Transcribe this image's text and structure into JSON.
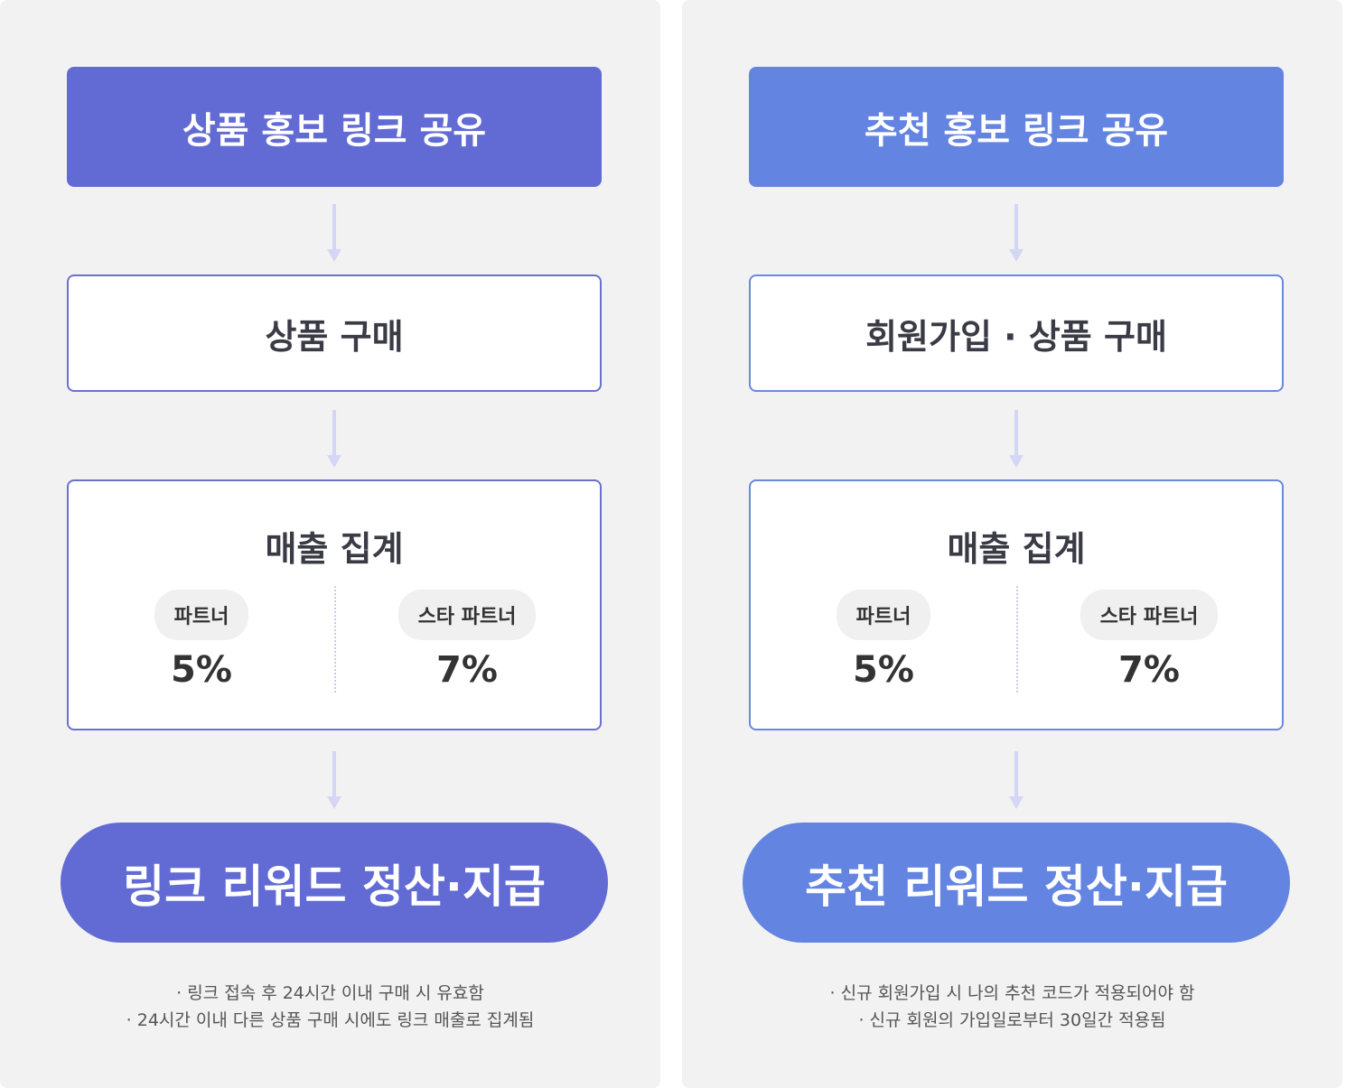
{
  "columns": [
    {
      "accent": "#626bd3",
      "title": "상품 홍보 링크 공유",
      "step": "상품 구매",
      "agg_title": "매출 집계",
      "tiers": [
        {
          "label": "파트너",
          "rate": "5%"
        },
        {
          "label": "스타 파트너",
          "rate": "7%"
        }
      ],
      "final": "링크 리워드 정산·지급",
      "notes": [
        "· 링크 접속 후 24시간 이내 구매 시 유효함",
        "· 24시간 이내 다른 상품 구매 시에도 링크 매출로 집계됨"
      ]
    },
    {
      "accent": "#6384e0",
      "title": "추천 홍보 링크 공유",
      "step": "회원가입 · 상품 구매",
      "agg_title": "매출 집계",
      "tiers": [
        {
          "label": "파트너",
          "rate": "5%"
        },
        {
          "label": "스타 파트너",
          "rate": "7%"
        }
      ],
      "final": "추천 리워드 정산·지급",
      "notes": [
        "· 신규 회원가입 시 나의 추천 코드가 적용되어야 함",
        "· 신규 회원의 가입일로부터 30일간 적용됨"
      ]
    }
  ]
}
